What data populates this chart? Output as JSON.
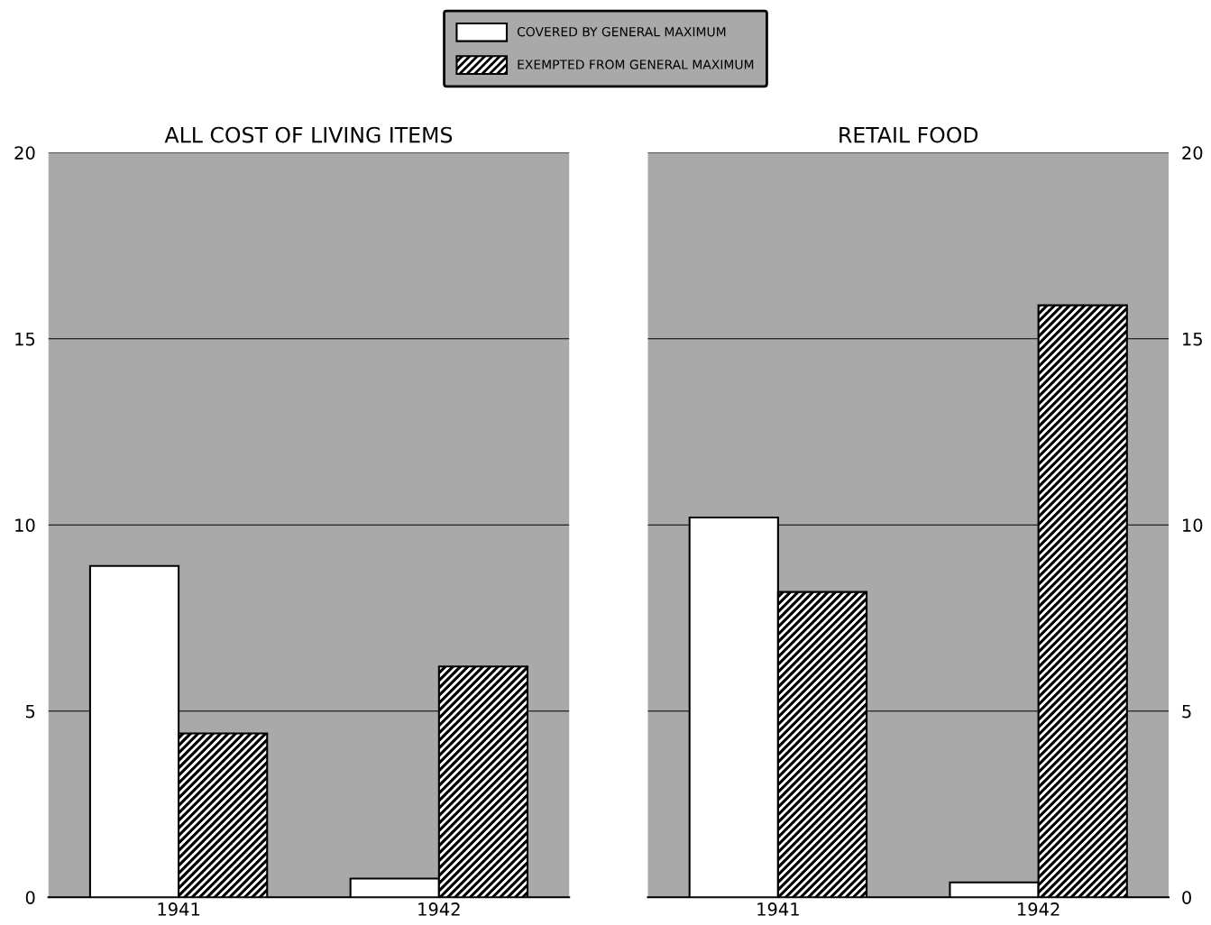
{
  "chart_data": [
    {
      "type": "bar",
      "title": "ALL COST OF LIVING ITEMS",
      "categories": [
        "1941",
        "1942"
      ],
      "series": [
        {
          "name": "COVERED BY GENERAL MAXIMUM",
          "color": "#ffffff",
          "values": [
            8.9,
            0.5
          ]
        },
        {
          "name": "EXEMPTED FROM GENERAL MAXIMUM",
          "color": "#000000",
          "values": [
            4.4,
            6.2
          ]
        }
      ],
      "ylim": [
        0,
        20
      ],
      "yticks": [
        0,
        5,
        10,
        15,
        20
      ],
      "grid": true,
      "legend": "top"
    },
    {
      "type": "bar",
      "title": "RETAIL FOOD",
      "categories": [
        "1941",
        "1942"
      ],
      "series": [
        {
          "color": "#ffffff",
          "values": [
            10.2,
            0.4
          ],
          "axis": "y2"
        },
        {
          "color": "#000000",
          "values": [
            8.2,
            15.9
          ],
          "axis": "y2"
        }
      ],
      "y2lim": [
        0,
        20
      ],
      "y2ticks": [
        0,
        5,
        10,
        15,
        20
      ],
      "grid": true
    }
  ]
}
